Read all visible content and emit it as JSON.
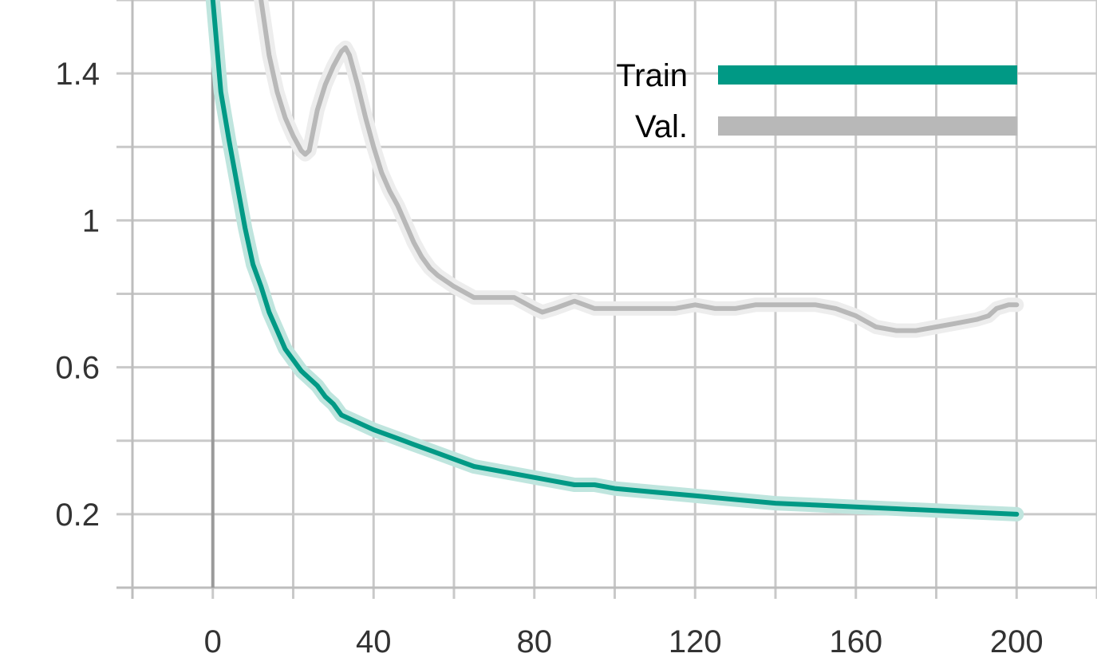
{
  "chart_data": {
    "type": "line",
    "title": "",
    "xlabel": "",
    "ylabel": "",
    "xlim": [
      -20,
      220
    ],
    "ylim": [
      0,
      1.6
    ],
    "x_ticks": [
      0,
      40,
      80,
      120,
      160,
      200
    ],
    "x_tick_labels": [
      "0",
      "40",
      "80",
      "120",
      "160",
      "200"
    ],
    "x_minor_ticks": [
      -20,
      20,
      60,
      100,
      140,
      180,
      220
    ],
    "y_ticks": [
      0.2,
      0.6,
      1,
      1.4
    ],
    "y_tick_labels": [
      "0.2",
      "0.6",
      "1",
      "1.4"
    ],
    "y_minor_ticks": [
      0,
      0.4,
      0.8,
      1.2,
      1.6
    ],
    "grid": true,
    "legend_position": "top-right",
    "series": [
      {
        "name": "Train",
        "color": "#009985",
        "band_color": "#bfe5de",
        "x": [
          0,
          2,
          4,
          6,
          8,
          10,
          12,
          14,
          16,
          18,
          20,
          22,
          24,
          26,
          28,
          30,
          32,
          34,
          36,
          38,
          40,
          45,
          50,
          55,
          60,
          65,
          70,
          75,
          80,
          85,
          90,
          95,
          100,
          110,
          120,
          130,
          140,
          150,
          160,
          170,
          180,
          190,
          200
        ],
        "y": [
          1.6,
          1.35,
          1.22,
          1.1,
          0.98,
          0.88,
          0.82,
          0.75,
          0.7,
          0.65,
          0.62,
          0.59,
          0.57,
          0.55,
          0.52,
          0.5,
          0.47,
          0.46,
          0.45,
          0.44,
          0.43,
          0.41,
          0.39,
          0.37,
          0.35,
          0.33,
          0.32,
          0.31,
          0.3,
          0.29,
          0.28,
          0.28,
          0.27,
          0.26,
          0.25,
          0.24,
          0.23,
          0.225,
          0.22,
          0.215,
          0.21,
          0.205,
          0.2
        ]
      },
      {
        "name": "Val.",
        "color": "#b8b8b8",
        "band_color": "#ededed",
        "x": [
          12,
          14,
          16,
          18,
          20,
          22,
          23,
          24,
          26,
          28,
          30,
          32,
          33,
          34,
          36,
          38,
          40,
          42,
          44,
          46,
          48,
          50,
          52,
          54,
          56,
          60,
          65,
          70,
          75,
          80,
          82,
          85,
          90,
          95,
          100,
          105,
          110,
          115,
          120,
          125,
          130,
          135,
          140,
          145,
          150,
          155,
          160,
          165,
          170,
          175,
          180,
          185,
          190,
          193,
          195,
          198,
          200
        ],
        "y": [
          1.6,
          1.45,
          1.35,
          1.28,
          1.23,
          1.19,
          1.18,
          1.19,
          1.3,
          1.37,
          1.42,
          1.46,
          1.47,
          1.45,
          1.37,
          1.28,
          1.2,
          1.13,
          1.08,
          1.04,
          0.99,
          0.94,
          0.9,
          0.87,
          0.85,
          0.82,
          0.79,
          0.79,
          0.79,
          0.76,
          0.75,
          0.76,
          0.78,
          0.76,
          0.76,
          0.76,
          0.76,
          0.76,
          0.77,
          0.76,
          0.76,
          0.77,
          0.77,
          0.77,
          0.77,
          0.76,
          0.74,
          0.71,
          0.7,
          0.7,
          0.71,
          0.72,
          0.73,
          0.74,
          0.76,
          0.77,
          0.77
        ]
      }
    ]
  }
}
